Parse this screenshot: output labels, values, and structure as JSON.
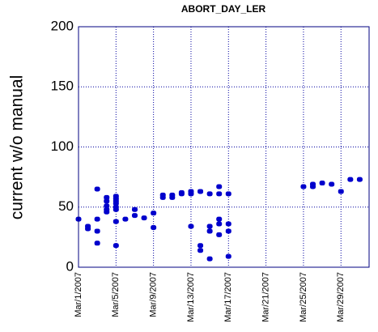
{
  "chart_data": {
    "type": "scatter",
    "title": "ABORT_DAY_LER",
    "y_label": "current w/o manual",
    "color": "#0000cc",
    "grid": true,
    "xlim": [
      "2007-03-01",
      "2007-04-01"
    ],
    "xticks": [
      {
        "value": "2007-03-01",
        "label": "Mar/1/2007"
      },
      {
        "value": "2007-03-05",
        "label": "Mar/5/2007"
      },
      {
        "value": "2007-03-09",
        "label": "Mar/9/2007"
      },
      {
        "value": "2007-03-13",
        "label": "Mar/13/2007"
      },
      {
        "value": "2007-03-17",
        "label": "Mar/17/2007"
      },
      {
        "value": "2007-03-21",
        "label": "Mar/21/2007"
      },
      {
        "value": "2007-03-25",
        "label": "Mar/25/2007"
      },
      {
        "value": "2007-03-29",
        "label": "Mar/29/2007"
      }
    ],
    "ylim": [
      0,
      200
    ],
    "yticks": [
      0,
      50,
      100,
      150,
      200
    ],
    "x": [
      "2007-03-01",
      "2007-03-02",
      "2007-03-02",
      "2007-03-03",
      "2007-03-03",
      "2007-03-03",
      "2007-03-03",
      "2007-03-04",
      "2007-03-04",
      "2007-03-04",
      "2007-03-04",
      "2007-03-04",
      "2007-03-05",
      "2007-03-05",
      "2007-03-05",
      "2007-03-05",
      "2007-03-05",
      "2007-03-05",
      "2007-03-05",
      "2007-03-05",
      "2007-03-06",
      "2007-03-07",
      "2007-03-07",
      "2007-03-08",
      "2007-03-09",
      "2007-03-09",
      "2007-03-10",
      "2007-03-10",
      "2007-03-11",
      "2007-03-11",
      "2007-03-12",
      "2007-03-12",
      "2007-03-13",
      "2007-03-13",
      "2007-03-13",
      "2007-03-14",
      "2007-03-14",
      "2007-03-14",
      "2007-03-15",
      "2007-03-15",
      "2007-03-15",
      "2007-03-15",
      "2007-03-16",
      "2007-03-16",
      "2007-03-16",
      "2007-03-16",
      "2007-03-16",
      "2007-03-17",
      "2007-03-17",
      "2007-03-17",
      "2007-03-17",
      "2007-03-25",
      "2007-03-26",
      "2007-03-26",
      "2007-03-27",
      "2007-03-28",
      "2007-03-29",
      "2007-03-30",
      "2007-03-31"
    ],
    "values": [
      40,
      34,
      32,
      65,
      40,
      30,
      20,
      58,
      55,
      51,
      48,
      46,
      59,
      57,
      55,
      53,
      50,
      48,
      38,
      18,
      40,
      48,
      43,
      41,
      45,
      33,
      60,
      58,
      60,
      58,
      62,
      61,
      63,
      61,
      34,
      63,
      18,
      14,
      61,
      34,
      30,
      7,
      67,
      61,
      40,
      36,
      27,
      61,
      36,
      30,
      9,
      67,
      69,
      67,
      70,
      69,
      63,
      73,
      73
    ]
  }
}
